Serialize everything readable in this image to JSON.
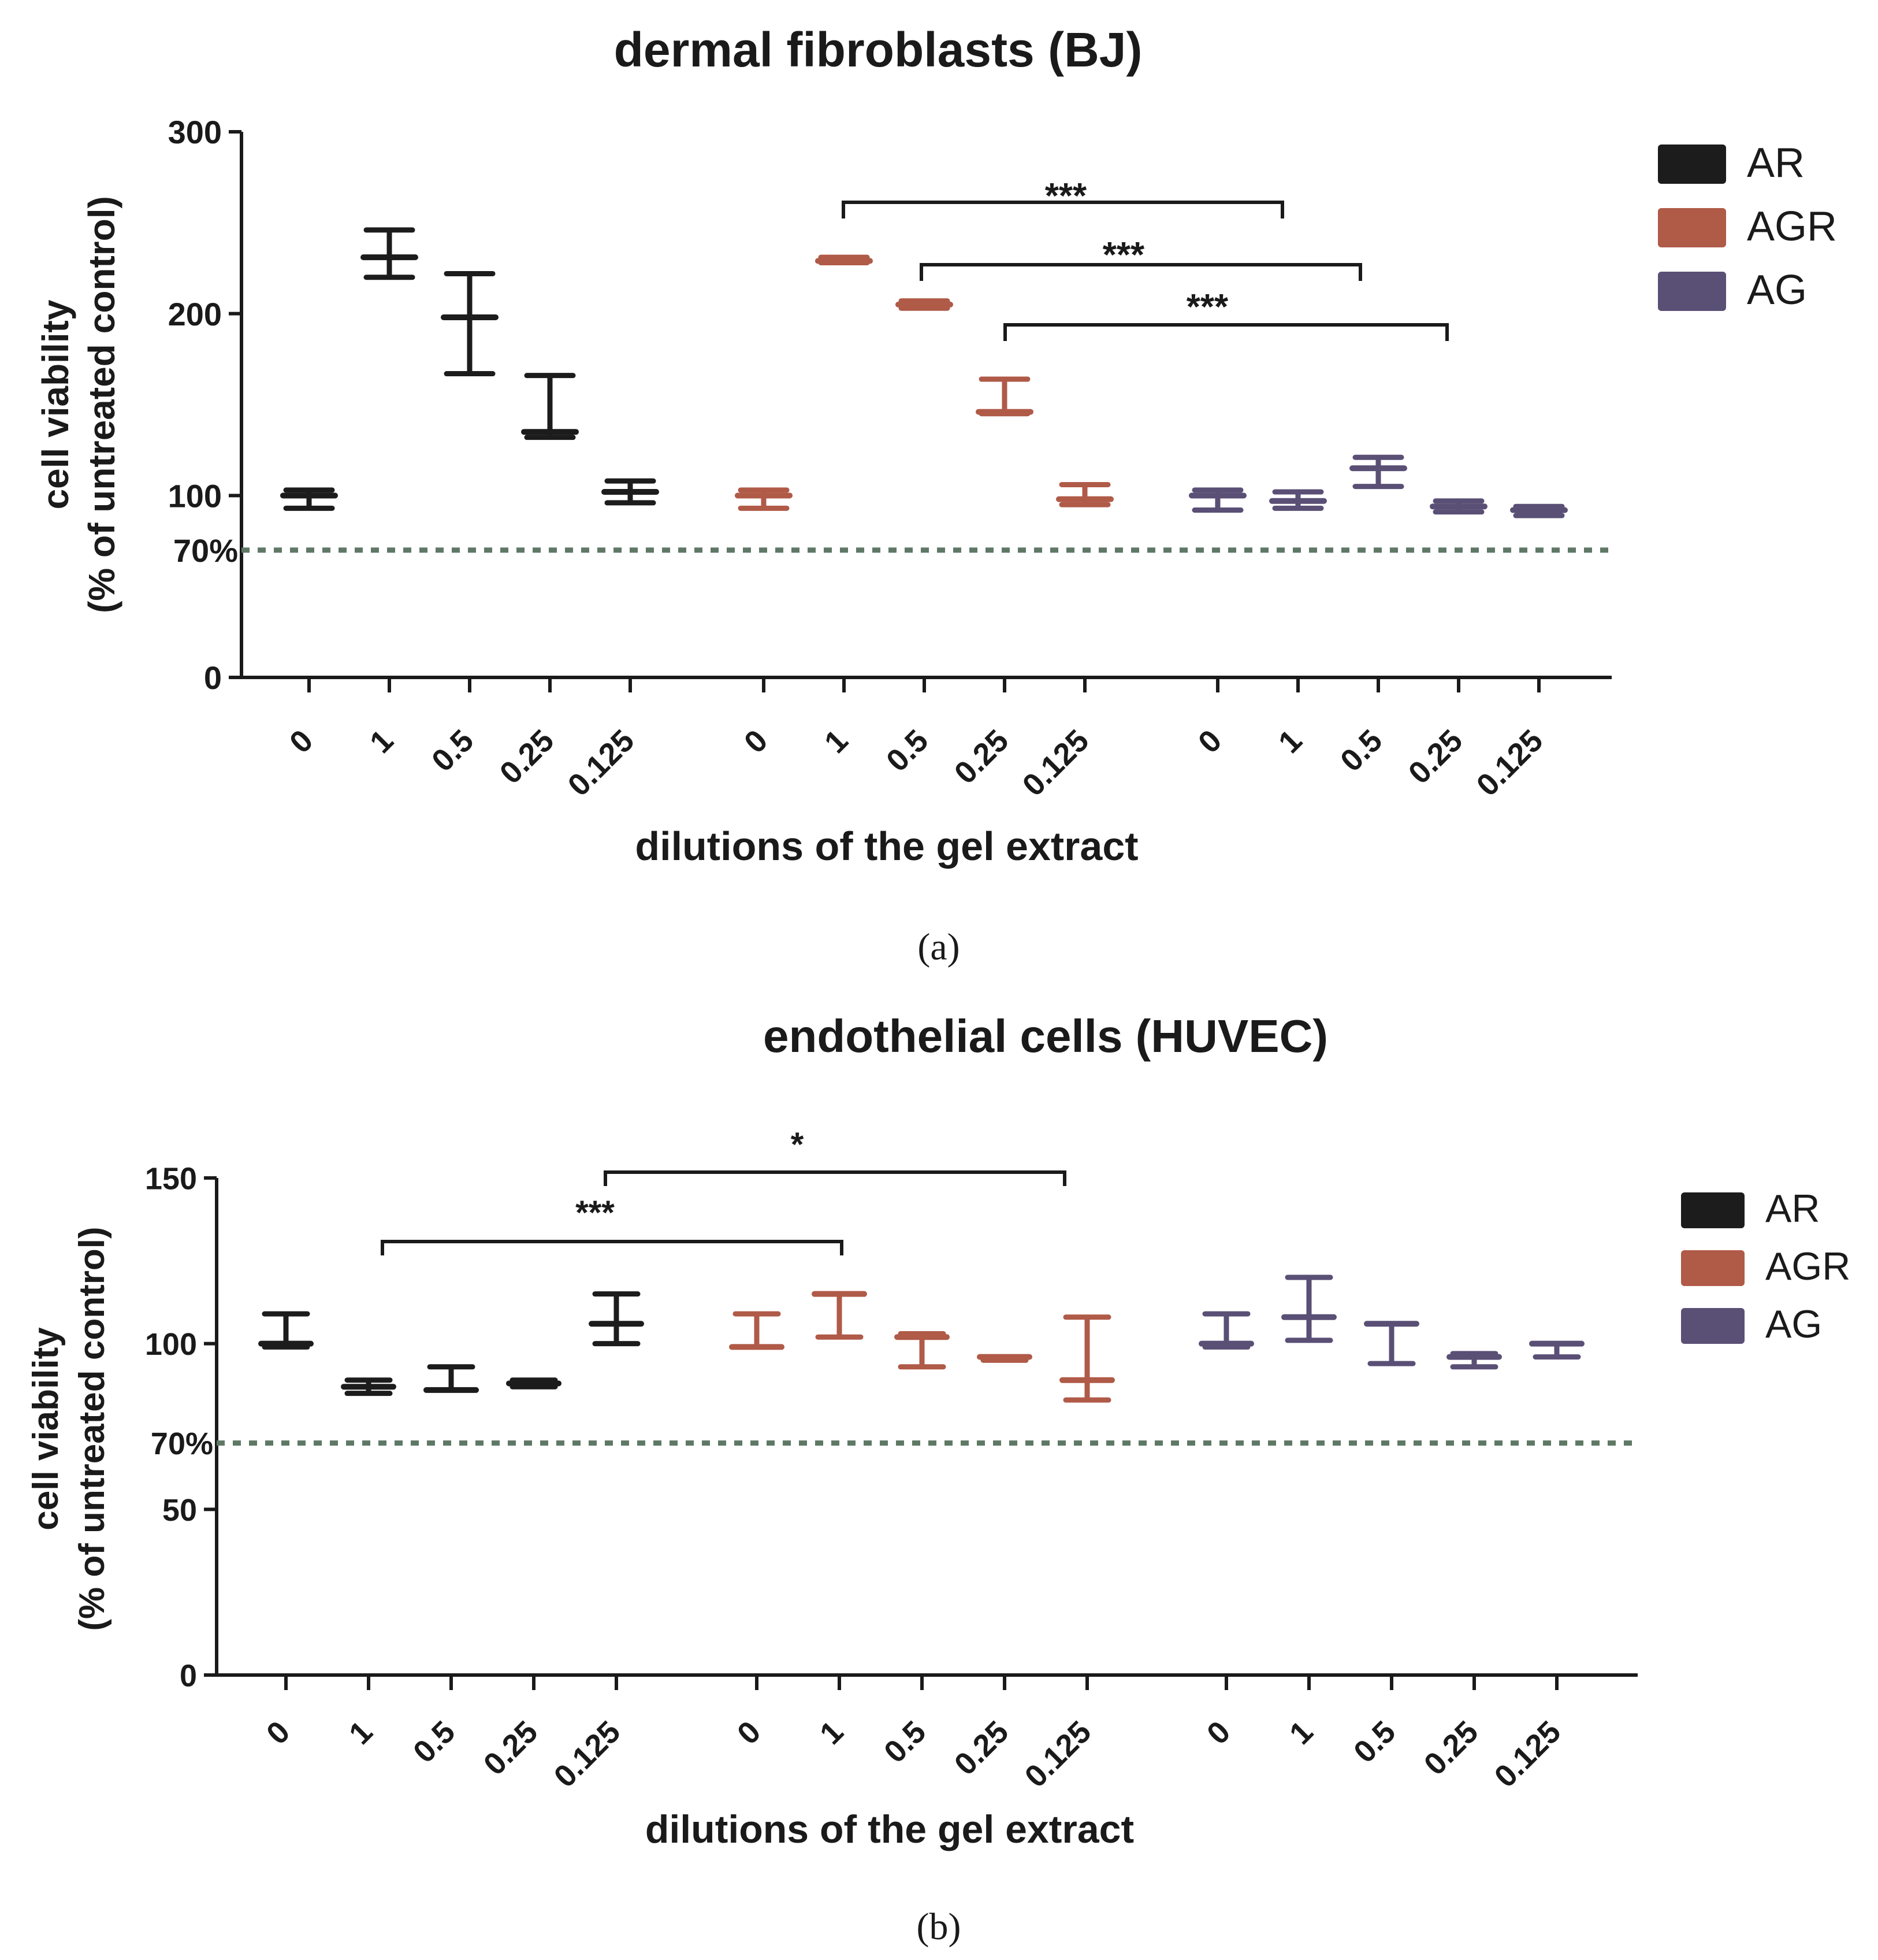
{
  "colors": {
    "AR": "#1c1c1c",
    "AGR": "#b05a48",
    "AG": "#5a4f75",
    "threshold": "#5f7866",
    "axis": "#1a1a1a"
  },
  "chart_data": [
    {
      "type": "box",
      "panel": "(a)",
      "title": "dermal fibroblasts (BJ)",
      "xlabel": "dilutions of the gel extract",
      "ylabel_line1": "cell viability",
      "ylabel_line2": "(% of untreated control)",
      "ylim": [
        0,
        300
      ],
      "yticks": [
        0,
        100,
        200,
        300
      ],
      "threshold": {
        "value": 70,
        "label": "70%"
      },
      "groups": [
        {
          "name": "AR",
          "categories": [
            "0",
            "1",
            "0.5",
            "0.25",
            "0.125"
          ],
          "min": [
            93,
            220,
            167,
            132,
            96
          ],
          "max": [
            103,
            246,
            222,
            166,
            108
          ],
          "median": [
            100,
            231,
            198,
            135,
            102
          ]
        },
        {
          "name": "AGR",
          "categories": [
            "0",
            "1",
            "0.5",
            "0.25",
            "0.125"
          ],
          "min": [
            93,
            228,
            203,
            145,
            95
          ],
          "max": [
            103,
            231,
            207,
            164,
            106
          ],
          "median": [
            100,
            229,
            205,
            146,
            98
          ]
        },
        {
          "name": "AG",
          "categories": [
            "0",
            "1",
            "0.5",
            "0.25",
            "0.125"
          ],
          "min": [
            92,
            93,
            105,
            91,
            89
          ],
          "max": [
            103,
            102,
            121,
            97,
            94
          ],
          "median": [
            100,
            97,
            115,
            94,
            92
          ]
        }
      ],
      "legend": [
        "AR",
        "AGR",
        "AG"
      ],
      "significance": [
        {
          "from": "AGR 1",
          "to": "AG 1",
          "label": "***"
        },
        {
          "from": "AGR 0.5",
          "to": "AG 0.5",
          "label": "***"
        },
        {
          "from": "AGR 0.25",
          "to": "AG 0.25",
          "label": "***"
        }
      ]
    },
    {
      "type": "box",
      "panel": "(b)",
      "title": "endothelial cells (HUVEC)",
      "xlabel": "dilutions of the gel extract",
      "ylabel_line1": "cell viability",
      "ylabel_line2": "(% of untreated control)",
      "ylim": [
        0,
        150
      ],
      "yticks": [
        0,
        50,
        100,
        150
      ],
      "threshold": {
        "value": 70,
        "label": "70%"
      },
      "groups": [
        {
          "name": "AR",
          "categories": [
            "0",
            "1",
            "0.5",
            "0.25",
            "0.125"
          ],
          "min": [
            99,
            85,
            86,
            87,
            100
          ],
          "max": [
            109,
            89,
            93,
            89,
            115
          ],
          "median": [
            100,
            87,
            86,
            88,
            106
          ]
        },
        {
          "name": "AGR",
          "categories": [
            "0",
            "1",
            "0.5",
            "0.25",
            "0.125"
          ],
          "min": [
            99,
            102,
            93,
            95,
            83
          ],
          "max": [
            109,
            115,
            103,
            96,
            108
          ],
          "median": [
            99,
            115,
            102,
            96,
            89
          ]
        },
        {
          "name": "AG",
          "categories": [
            "0",
            "1",
            "0.5",
            "0.25",
            "0.125"
          ],
          "min": [
            99,
            101,
            94,
            93,
            96
          ],
          "max": [
            109,
            120,
            106,
            97,
            100
          ],
          "median": [
            100,
            108,
            106,
            96,
            100
          ]
        }
      ],
      "legend": [
        "AR",
        "AGR",
        "AG"
      ],
      "significance": [
        {
          "from": "AR 1",
          "to": "AGR 1",
          "label": "***"
        },
        {
          "from": "AR 0.125",
          "to": "AGR 0.125",
          "label": "*"
        }
      ]
    }
  ]
}
